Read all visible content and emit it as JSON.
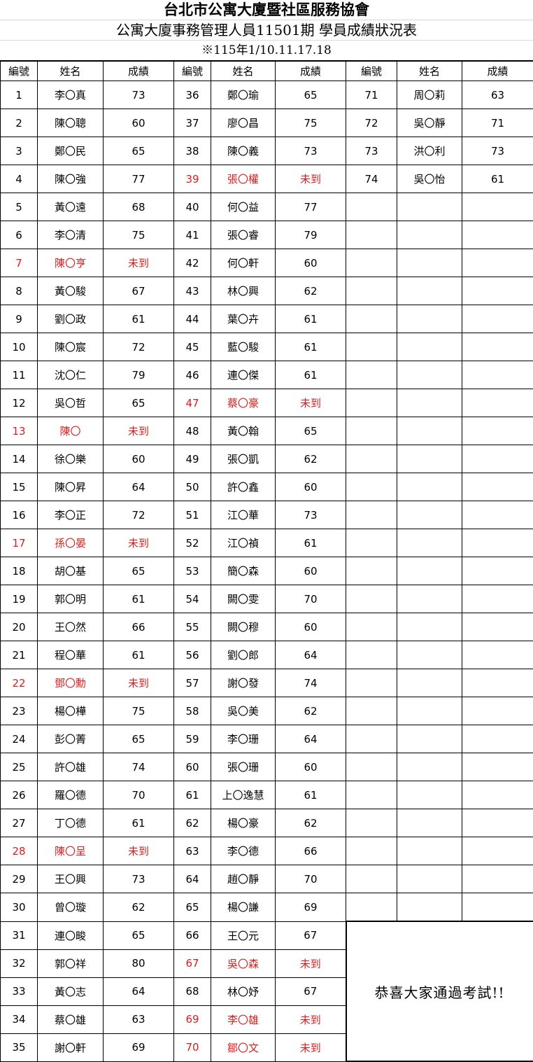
{
  "header": {
    "organization": "台北市公寓大廈暨社區服務協會",
    "title": "公寓大廈事務管理人員11501期 學員成績狀況表",
    "dates": "※115年1/10.11.17.18"
  },
  "columns": [
    "編號",
    "姓名",
    "成績"
  ],
  "absent_label": "未到",
  "colors": {
    "absent": "#d81e1e",
    "text": "#000000"
  },
  "students": [
    [
      "1",
      "李〇真",
      "73"
    ],
    [
      "2",
      "陳〇聰",
      "60"
    ],
    [
      "3",
      "鄭〇民",
      "65"
    ],
    [
      "4",
      "陳〇強",
      "77"
    ],
    [
      "5",
      "黃〇遠",
      "68"
    ],
    [
      "6",
      "李〇清",
      "75"
    ],
    [
      "7",
      "陳〇亨",
      "未到"
    ],
    [
      "8",
      "黃〇駿",
      "67"
    ],
    [
      "9",
      "劉〇政",
      "61"
    ],
    [
      "10",
      "陳〇宸",
      "72"
    ],
    [
      "11",
      "沈〇仁",
      "79"
    ],
    [
      "12",
      "吳〇哲",
      "65"
    ],
    [
      "13",
      "陳〇",
      "未到"
    ],
    [
      "14",
      "徐〇樂",
      "60"
    ],
    [
      "15",
      "陳〇昇",
      "64"
    ],
    [
      "16",
      "李〇正",
      "72"
    ],
    [
      "17",
      "孫〇晏",
      "未到"
    ],
    [
      "18",
      "胡〇基",
      "65"
    ],
    [
      "19",
      "郭〇明",
      "61"
    ],
    [
      "20",
      "王〇然",
      "66"
    ],
    [
      "21",
      "程〇華",
      "61"
    ],
    [
      "22",
      "鄧〇勳",
      "未到"
    ],
    [
      "23",
      "楊〇樺",
      "75"
    ],
    [
      "24",
      "彭〇菁",
      "65"
    ],
    [
      "25",
      "許〇雄",
      "74"
    ],
    [
      "26",
      "羅〇德",
      "70"
    ],
    [
      "27",
      "丁〇德",
      "61"
    ],
    [
      "28",
      "陳〇呈",
      "未到"
    ],
    [
      "29",
      "王〇興",
      "73"
    ],
    [
      "30",
      "曾〇璇",
      "62"
    ],
    [
      "31",
      "連〇畯",
      "65"
    ],
    [
      "32",
      "郭〇祥",
      "80"
    ],
    [
      "33",
      "黃〇志",
      "64"
    ],
    [
      "34",
      "蔡〇雄",
      "63"
    ],
    [
      "35",
      "謝〇軒",
      "69"
    ],
    [
      "36",
      "鄭〇瑜",
      "65"
    ],
    [
      "37",
      "廖〇昌",
      "75"
    ],
    [
      "38",
      "陳〇義",
      "73"
    ],
    [
      "39",
      "張〇權",
      "未到"
    ],
    [
      "40",
      "何〇益",
      "77"
    ],
    [
      "41",
      "張〇睿",
      "79"
    ],
    [
      "42",
      "何〇軒",
      "60"
    ],
    [
      "43",
      "林〇興",
      "62"
    ],
    [
      "44",
      "葉〇卉",
      "61"
    ],
    [
      "45",
      "藍〇駿",
      "61"
    ],
    [
      "46",
      "連〇傑",
      "61"
    ],
    [
      "47",
      "蔡〇豪",
      "未到"
    ],
    [
      "48",
      "黃〇翰",
      "65"
    ],
    [
      "49",
      "張〇凱",
      "62"
    ],
    [
      "50",
      "許〇鑫",
      "60"
    ],
    [
      "51",
      "江〇華",
      "73"
    ],
    [
      "52",
      "江〇禎",
      "61"
    ],
    [
      "53",
      "簡〇森",
      "60"
    ],
    [
      "54",
      "闕〇雯",
      "70"
    ],
    [
      "55",
      "闕〇穆",
      "60"
    ],
    [
      "56",
      "劉〇郎",
      "64"
    ],
    [
      "57",
      "謝〇發",
      "74"
    ],
    [
      "58",
      "吳〇美",
      "62"
    ],
    [
      "59",
      "李〇珊",
      "64"
    ],
    [
      "60",
      "張〇珊",
      "60"
    ],
    [
      "61",
      "上〇逸慧",
      "61"
    ],
    [
      "62",
      "楊〇豪",
      "62"
    ],
    [
      "63",
      "李〇德",
      "66"
    ],
    [
      "64",
      "趙〇靜",
      "70"
    ],
    [
      "65",
      "楊〇謙",
      "69"
    ],
    [
      "66",
      "王〇元",
      "67"
    ],
    [
      "67",
      "吳〇森",
      "未到"
    ],
    [
      "68",
      "林〇妤",
      "67"
    ],
    [
      "69",
      "李〇雄",
      "未到"
    ],
    [
      "70",
      "鄒〇文",
      "未到"
    ],
    [
      "71",
      "周〇莉",
      "63"
    ],
    [
      "72",
      "吳〇靜",
      "71"
    ],
    [
      "73",
      "洪〇利",
      "73"
    ],
    [
      "74",
      "吳〇怡",
      "61"
    ]
  ],
  "message": "恭喜大家通過考試!!"
}
